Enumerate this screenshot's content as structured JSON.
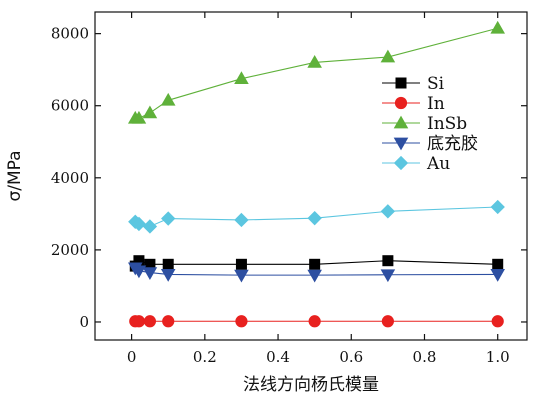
{
  "chart_data": {
    "type": "line",
    "title": "",
    "xlabel": "法线方向杨氏模量",
    "ylabel": "σ/MPa",
    "xlim": [
      -0.1,
      1.08
    ],
    "ylim": [
      -500,
      8600
    ],
    "xticks": [
      0.0,
      0.2,
      0.4,
      0.6,
      0.8,
      1.0
    ],
    "xtick_labels": [
      "0",
      "0.2",
      "0.4",
      "0.6",
      "0.8",
      "1.0"
    ],
    "yticks": [
      0,
      2000,
      4000,
      6000,
      8000
    ],
    "ytick_labels": [
      "0",
      "2000",
      "4000",
      "6000",
      "8000"
    ],
    "grid": false,
    "legend_position": "right",
    "x": [
      0.01,
      0.02,
      0.05,
      0.1,
      0.3,
      0.5,
      0.7,
      1.0
    ],
    "series": [
      {
        "name": "Si",
        "color": "#000000",
        "marker": "square",
        "values": [
          1550,
          1700,
          1600,
          1600,
          1600,
          1600,
          1700,
          1600
        ]
      },
      {
        "name": "In",
        "color": "#e8211f",
        "marker": "circle",
        "values": [
          20,
          20,
          20,
          20,
          20,
          20,
          20,
          20
        ]
      },
      {
        "name": "InSb",
        "color": "#5fb13a",
        "marker": "triangle-up",
        "values": [
          5650,
          5650,
          5800,
          6150,
          6750,
          7200,
          7350,
          8150
        ]
      },
      {
        "name": "底充胶",
        "color": "#2d4fa1",
        "marker": "triangle-down",
        "values": [
          1500,
          1420,
          1370,
          1320,
          1300,
          1300,
          1310,
          1320
        ]
      },
      {
        "name": "Au",
        "color": "#5cc6e0",
        "marker": "diamond",
        "values": [
          2780,
          2720,
          2650,
          2870,
          2830,
          2880,
          3070,
          3190
        ]
      }
    ]
  }
}
